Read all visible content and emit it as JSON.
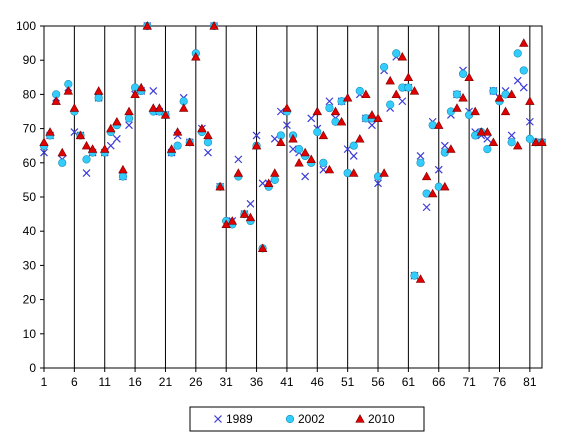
{
  "chart_data": {
    "type": "scatter",
    "title": "",
    "xlabel": "",
    "ylabel": "",
    "xlim": [
      1,
      83
    ],
    "ylim": [
      0,
      100
    ],
    "x_ticks": [
      1,
      6,
      11,
      16,
      21,
      26,
      31,
      36,
      41,
      46,
      51,
      56,
      61,
      66,
      71,
      76,
      81
    ],
    "y_ticks": [
      0,
      10,
      20,
      30,
      40,
      50,
      60,
      70,
      80,
      90,
      100
    ],
    "grid": "vertical",
    "legend": "bottom",
    "x": [
      1,
      2,
      3,
      4,
      5,
      6,
      7,
      8,
      9,
      10,
      11,
      12,
      13,
      14,
      15,
      16,
      17,
      18,
      19,
      20,
      21,
      22,
      23,
      24,
      25,
      26,
      27,
      28,
      29,
      30,
      31,
      32,
      33,
      34,
      35,
      36,
      37,
      38,
      39,
      40,
      41,
      42,
      43,
      44,
      45,
      46,
      47,
      48,
      49,
      50,
      51,
      52,
      53,
      54,
      55,
      56,
      57,
      58,
      59,
      60,
      61,
      62,
      63,
      64,
      65,
      66,
      67,
      68,
      69,
      70,
      71,
      72,
      73,
      74,
      75,
      76,
      77,
      78,
      79,
      80,
      81,
      82,
      83
    ],
    "series": [
      {
        "name": "1989",
        "marker": "x",
        "color": "#3b3bd9",
        "values": [
          63,
          68,
          79,
          61,
          82,
          69,
          68,
          57,
          63,
          79,
          63,
          65,
          67,
          56,
          71,
          80,
          81,
          100,
          81,
          75,
          74,
          63,
          68,
          79,
          66,
          91,
          70,
          63,
          100,
          53,
          42,
          43,
          61,
          45,
          48,
          68,
          54,
          54,
          67,
          75,
          71,
          64,
          63,
          56,
          73,
          70,
          58,
          78,
          73,
          78,
          64,
          62,
          80,
          73,
          71,
          54,
          87,
          76,
          91,
          78,
          82,
          27,
          62,
          47,
          72,
          58,
          65,
          74,
          80,
          87,
          75,
          69,
          68,
          67,
          81,
          79,
          81,
          68,
          84,
          82,
          72,
          66,
          66
        ]
      },
      {
        "name": "2002",
        "marker": "circle",
        "color": "#33ccff",
        "values": [
          65,
          68,
          80,
          60,
          83,
          75,
          68,
          61,
          63,
          79,
          63,
          69,
          71,
          56,
          73,
          82,
          81,
          100,
          75,
          75,
          74,
          63,
          65,
          78,
          66,
          92,
          69,
          66,
          100,
          53,
          43,
          42,
          56,
          45,
          43,
          65,
          35,
          53,
          55,
          68,
          75,
          68,
          64,
          62,
          60,
          69,
          60,
          76,
          72,
          78,
          57,
          65,
          81,
          73,
          73,
          56,
          88,
          77,
          92,
          82,
          82,
          27,
          60,
          51,
          71,
          53,
          63,
          75,
          80,
          86,
          74,
          68,
          69,
          64,
          81,
          78,
          80,
          66,
          92,
          87,
          67,
          66,
          66
        ]
      },
      {
        "name": "2010",
        "marker": "triangle",
        "color": "#e00000",
        "values": [
          66,
          69,
          78,
          63,
          81,
          76,
          68,
          65,
          64,
          81,
          64,
          70,
          72,
          58,
          75,
          80,
          82,
          100,
          76,
          76,
          74,
          64,
          69,
          76,
          66,
          91,
          70,
          68,
          100,
          53,
          42,
          43,
          57,
          45,
          44,
          65,
          35,
          54,
          57,
          66,
          76,
          67,
          60,
          63,
          61,
          75,
          68,
          58,
          75,
          72,
          79,
          57,
          67,
          80,
          74,
          73,
          57,
          84,
          80,
          91,
          85,
          81,
          26,
          56,
          51,
          71,
          53,
          64,
          76,
          79,
          85,
          75,
          69,
          69,
          66,
          79,
          75,
          80,
          65,
          95,
          78,
          66,
          66
        ]
      }
    ]
  }
}
